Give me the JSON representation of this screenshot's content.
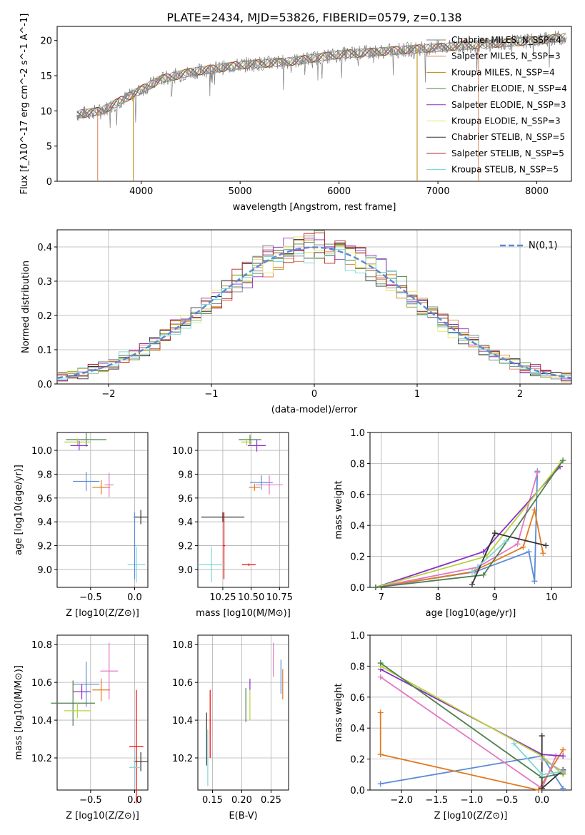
{
  "figure": {
    "title": "PLATE=2434, MJD=53826, FIBERID=0579, z=0.138"
  },
  "colors": {
    "Chabrier MILES": "#7f7f7f",
    "Salpeter MILES": "#e07b54",
    "Kroupa MILES": "#b8860b",
    "Chabrier ELODIE": "#4f7f4f",
    "Salpeter ELODIE": "#8b2fc9",
    "Kroupa ELODIE": "#e6e65a",
    "Chabrier STELIB": "#333333",
    "Salpeter STELIB": "#b22222",
    "Kroupa STELIB": "#6fd3d3",
    "normal": "#5b8bd6",
    "pink": "#e377c2",
    "orange": "#e07b20",
    "blue": "#5b8bd6",
    "purple": "#8b2fc9",
    "olive": "#b5d33d",
    "green": "#4f7f4f",
    "dark": "#333333",
    "cyan": "#7fd6d6",
    "grey": "#aaaaaa"
  },
  "chart_data": [
    {
      "type": "line",
      "id": "spectrum",
      "title": "PLATE=2434, MJD=53826, FIBERID=0579, z=0.138",
      "xlabel": "wavelength [Angstrom, rest frame]",
      "ylabel": "Flux [f_λ10^-17 erg cm^-2 s^-1 A^-1]",
      "xlim": [
        3150,
        8350
      ],
      "ylim": [
        0,
        22
      ],
      "xticks": [
        "4000",
        "5000",
        "6000",
        "7000",
        "8000"
      ],
      "yticks": [
        "0",
        "5",
        "10",
        "15",
        "20"
      ],
      "grid": false,
      "legend_position": "top-right",
      "series": [
        {
          "name": "Chabrier MILES, N_SSP=4"
        },
        {
          "name": "Salpeter MILES, N_SSP=3"
        },
        {
          "name": "Kroupa MILES, N_SSP=4"
        },
        {
          "name": "Chabrier ELODIE, N_SSP=4"
        },
        {
          "name": "Salpeter ELODIE, N_SSP=3"
        },
        {
          "name": "Kroupa ELODIE, N_SSP=3"
        },
        {
          "name": "Chabrier STELIB, N_SSP=5"
        },
        {
          "name": "Salpeter STELIB, N_SSP=5"
        },
        {
          "name": "Kroupa STELIB, N_SSP=5"
        }
      ],
      "continuum_points": [
        [
          3350,
          9.5
        ],
        [
          3600,
          10
        ],
        [
          3800,
          11.5
        ],
        [
          4000,
          13
        ],
        [
          4200,
          14.5
        ],
        [
          4500,
          15.5
        ],
        [
          5000,
          16.5
        ],
        [
          5500,
          17
        ],
        [
          6000,
          18
        ],
        [
          6500,
          18.5
        ],
        [
          7000,
          19
        ],
        [
          7500,
          19.5
        ],
        [
          8000,
          20
        ],
        [
          8300,
          20.5
        ]
      ]
    },
    {
      "type": "line",
      "id": "residuals",
      "xlabel": "(data-model)/error",
      "ylabel": "Normed distribution",
      "xlim": [
        -2.5,
        2.5
      ],
      "ylim": [
        0,
        0.45
      ],
      "xticks": [
        "−2",
        "−1",
        "0",
        "1",
        "2"
      ],
      "yticks": [
        "0.0",
        "0.1",
        "0.2",
        "0.3",
        "0.4"
      ],
      "grid": true,
      "legend_position": "top-right",
      "series": [
        {
          "name": "N(0,1)",
          "style": "dashed"
        }
      ]
    },
    {
      "type": "scatter",
      "id": "age_vs_Z",
      "xlabel": "Z [log10(Z/Z⊙)]",
      "ylabel": "age [log10(age/yr)]",
      "xlim": [
        -0.88,
        0.15
      ],
      "ylim": [
        8.85,
        10.15
      ],
      "xticks": [
        "−0.5",
        "0.0"
      ],
      "yticks": [
        "9.0",
        "9.2",
        "9.4",
        "9.6",
        "9.8",
        "10.0"
      ],
      "grid": true,
      "points": [
        {
          "color": "green",
          "x": -0.55,
          "y": 10.09,
          "xerr": 0.23,
          "yerr": 0.06
        },
        {
          "color": "olive",
          "x": -0.65,
          "y": 10.07,
          "xerr": 0.15,
          "yerr": 0.03
        },
        {
          "color": "purple",
          "x": -0.63,
          "y": 10.04,
          "xerr": 0.1,
          "yerr": 0.04
        },
        {
          "color": "blue",
          "x": -0.55,
          "y": 9.74,
          "xerr": 0.15,
          "yerr": 0.08
        },
        {
          "color": "pink",
          "x": -0.29,
          "y": 9.71,
          "xerr": 0.05,
          "yerr": 0.1
        },
        {
          "color": "orange",
          "x": -0.38,
          "y": 9.69,
          "xerr": 0.1,
          "yerr": 0.06
        },
        {
          "color": "dark",
          "x": 0.07,
          "y": 9.44,
          "xerr": 0.08,
          "yerr": 0.06
        },
        {
          "color": "cyan",
          "x": 0.02,
          "y": 9.04,
          "xerr": 0.1,
          "yerr": 0.15
        },
        {
          "color": "blue",
          "x": 0.0,
          "y": 9.2,
          "xerr": 0.01,
          "yerr": 0.28
        }
      ]
    },
    {
      "type": "scatter",
      "id": "age_vs_mass",
      "xlabel": "mass [log10(M/M⊙)]",
      "ylabel": "",
      "xlim": [
        10.03,
        10.83
      ],
      "ylim": [
        8.85,
        10.15
      ],
      "xticks": [
        "10.25",
        "10.50",
        "10.75"
      ],
      "yticks": [
        "9.0",
        "9.2",
        "9.4",
        "9.6",
        "9.8",
        "10.0"
      ],
      "grid": true,
      "points": [
        {
          "color": "green",
          "x": 10.49,
          "y": 10.09,
          "xerr": 0.1,
          "yerr": 0.04
        },
        {
          "color": "olive",
          "x": 10.46,
          "y": 10.07,
          "xerr": 0.05,
          "yerr": 0.03
        },
        {
          "color": "purple",
          "x": 10.55,
          "y": 10.04,
          "xerr": 0.08,
          "yerr": 0.05
        },
        {
          "color": "blue",
          "x": 10.59,
          "y": 9.73,
          "xerr": 0.1,
          "yerr": 0.06
        },
        {
          "color": "pink",
          "x": 10.66,
          "y": 9.71,
          "xerr": 0.12,
          "yerr": 0.08
        },
        {
          "color": "orange",
          "x": 10.53,
          "y": 9.69,
          "xerr": 0.05,
          "yerr": 0.03
        },
        {
          "color": "dark",
          "x": 10.25,
          "y": 9.44,
          "xerr": 0.19,
          "yerr": 0.04
        },
        {
          "color": "red",
          "x": 10.26,
          "y": 9.2,
          "xerr": 0.01,
          "yerr": 0.28
        },
        {
          "color": "cyan",
          "x": 10.15,
          "y": 9.04,
          "xerr": 0.12,
          "yerr": 0.15
        },
        {
          "color": "red",
          "x": 10.48,
          "y": 9.04,
          "xerr": 0.06,
          "yerr": 0.01
        }
      ]
    },
    {
      "type": "line",
      "id": "massweight_vs_age",
      "xlabel": "age [log10(age/yr)]",
      "ylabel": "mass weight",
      "xlim": [
        6.8,
        10.35
      ],
      "ylim": [
        0,
        1
      ],
      "xticks": [
        "7",
        "8",
        "9",
        "10"
      ],
      "yticks": [
        "0.0",
        "0.2",
        "0.4",
        "0.6",
        "0.8",
        "1.0"
      ],
      "grid": true,
      "series": [
        {
          "color": "blue",
          "points": [
            [
              6.9,
              0.0
            ],
            [
              8.65,
              0.1
            ],
            [
              9.6,
              0.23
            ],
            [
              9.7,
              0.04
            ],
            [
              9.75,
              0.75
            ]
          ]
        },
        {
          "color": "orange",
          "points": [
            [
              6.9,
              0.0
            ],
            [
              8.6,
              0.1
            ],
            [
              9.5,
              0.26
            ],
            [
              9.7,
              0.5
            ],
            [
              9.85,
              0.22
            ]
          ]
        },
        {
          "color": "pink",
          "points": [
            [
              6.9,
              0.0
            ],
            [
              8.7,
              0.13
            ],
            [
              9.4,
              0.28
            ],
            [
              9.75,
              0.74
            ]
          ]
        },
        {
          "color": "purple",
          "points": [
            [
              6.9,
              0.0
            ],
            [
              8.8,
              0.23
            ],
            [
              10.15,
              0.78
            ]
          ]
        },
        {
          "color": "olive",
          "points": [
            [
              6.9,
              0.0
            ],
            [
              8.85,
              0.2
            ],
            [
              10.15,
              0.8
            ]
          ]
        },
        {
          "color": "green",
          "points": [
            [
              6.9,
              0.0
            ],
            [
              8.8,
              0.08
            ],
            [
              10.2,
              0.82
            ]
          ]
        },
        {
          "color": "dark",
          "points": [
            [
              8.6,
              0.02
            ],
            [
              9.0,
              0.35
            ],
            [
              9.9,
              0.27
            ]
          ]
        },
        {
          "color": "cyan",
          "points": [
            [
              8.6,
              0.1
            ],
            [
              9.2,
              0.3
            ]
          ]
        }
      ]
    },
    {
      "type": "scatter",
      "id": "mass_vs_Z",
      "xlabel": "Z [log10(Z/Z⊙)]",
      "ylabel": "mass [log10(M/M⊙)]",
      "xlim": [
        -0.88,
        0.15
      ],
      "ylim": [
        10.03,
        10.85
      ],
      "xticks": [
        "−0.5",
        "0.0"
      ],
      "yticks": [
        "10.2",
        "10.4",
        "10.6",
        "10.8"
      ],
      "grid": true,
      "points": [
        {
          "color": "pink",
          "x": -0.29,
          "y": 10.66,
          "xerr": 0.1,
          "yerr": 0.15
        },
        {
          "color": "blue",
          "x": -0.55,
          "y": 10.59,
          "xerr": 0.15,
          "yerr": 0.12
        },
        {
          "color": "orange",
          "x": -0.38,
          "y": 10.56,
          "xerr": 0.1,
          "yerr": 0.06
        },
        {
          "color": "purple",
          "x": -0.6,
          "y": 10.55,
          "xerr": 0.1,
          "yerr": 0.04
        },
        {
          "color": "green",
          "x": -0.7,
          "y": 10.49,
          "xerr": 0.25,
          "yerr": 0.12
        },
        {
          "color": "olive",
          "x": -0.65,
          "y": 10.45,
          "xerr": 0.15,
          "yerr": 0.04
        },
        {
          "color": "red",
          "x": 0.02,
          "y": 10.26,
          "xerr": 0.08,
          "yerr": 0.3
        },
        {
          "color": "dark",
          "x": 0.07,
          "y": 10.18,
          "xerr": 0.08,
          "yerr": 0.05
        },
        {
          "color": "cyan",
          "x": 0.0,
          "y": 10.15,
          "xerr": 0.06,
          "yerr": 0.1
        }
      ]
    },
    {
      "type": "scatter",
      "id": "mass_vs_ebv",
      "xlabel": "E(B-V)",
      "ylabel": "",
      "xlim": [
        0.125,
        0.28
      ],
      "ylim": [
        10.03,
        10.85
      ],
      "xticks": [
        "0.15",
        "0.20",
        "0.25"
      ],
      "yticks": [
        "10.2",
        "10.4",
        "10.6",
        "10.8"
      ],
      "grid": true,
      "points": [
        {
          "color": "pink",
          "x": 0.254,
          "y": 10.72,
          "xerr": 0.0,
          "yerr": 0.09
        },
        {
          "color": "blue",
          "x": 0.267,
          "y": 10.63,
          "xerr": 0.0,
          "yerr": 0.09
        },
        {
          "color": "orange",
          "x": 0.27,
          "y": 10.59,
          "xerr": 0.0,
          "yerr": 0.08
        },
        {
          "color": "purple",
          "x": 0.214,
          "y": 10.59,
          "xerr": 0.0,
          "yerr": 0.03
        },
        {
          "color": "olive",
          "x": 0.214,
          "y": 10.48,
          "xerr": 0.0,
          "yerr": 0.08
        },
        {
          "color": "green",
          "x": 0.207,
          "y": 10.48,
          "xerr": 0.0,
          "yerr": 0.09
        },
        {
          "color": "red",
          "x": 0.146,
          "y": 10.38,
          "xerr": 0.0,
          "yerr": 0.18
        },
        {
          "color": "dark",
          "x": 0.14,
          "y": 10.3,
          "xerr": 0.0,
          "yerr": 0.14
        },
        {
          "color": "cyan",
          "x": 0.142,
          "y": 10.2,
          "xerr": 0.0,
          "yerr": 0.15
        }
      ]
    },
    {
      "type": "line",
      "id": "massweight_vs_Z",
      "xlabel": "Z [log10(Z/Z⊙)]",
      "ylabel": "mass weight",
      "xlim": [
        -2.45,
        0.42
      ],
      "ylim": [
        0,
        1
      ],
      "xticks": [
        "−2.0",
        "−1.5",
        "−1.0",
        "−0.5",
        "0.0"
      ],
      "yticks": [
        "0.0",
        "0.2",
        "0.4",
        "0.6",
        "0.8",
        "1.0"
      ],
      "grid": true,
      "series": [
        {
          "color": "blue",
          "points": [
            [
              -2.3,
              0.04
            ],
            [
              0.0,
              0.22
            ],
            [
              0.3,
              0.01
            ]
          ]
        },
        {
          "color": "orange",
          "points": [
            [
              -2.3,
              0.5
            ],
            [
              -2.3,
              0.23
            ],
            [
              -0.05,
              0.0
            ],
            [
              0.3,
              0.26
            ]
          ]
        },
        {
          "color": "pink",
          "points": [
            [
              -2.3,
              0.73
            ],
            [
              0.0,
              0.01
            ],
            [
              0.2,
              0.22
            ]
          ]
        },
        {
          "color": "purple",
          "points": [
            [
              -2.3,
              0.78
            ],
            [
              0.0,
              0.23
            ],
            [
              0.3,
              0.22
            ]
          ]
        },
        {
          "color": "olive",
          "points": [
            [
              -2.3,
              0.8
            ],
            [
              0.0,
              0.22
            ],
            [
              0.3,
              0.1
            ]
          ]
        },
        {
          "color": "green",
          "points": [
            [
              -2.3,
              0.82
            ],
            [
              0.0,
              0.08
            ],
            [
              0.3,
              0.11
            ]
          ]
        },
        {
          "color": "dark",
          "points": [
            [
              0.0,
              0.35
            ],
            [
              0.0,
              0.01
            ],
            [
              0.3,
              0.13
            ]
          ]
        },
        {
          "color": "cyan",
          "points": [
            [
              -0.4,
              0.3
            ],
            [
              0.0,
              0.1
            ],
            [
              0.3,
              0.12
            ]
          ]
        },
        {
          "color": "grey",
          "points": [
            [
              0.0,
              0.2
            ],
            [
              0.3,
              0.12
            ]
          ]
        }
      ]
    }
  ]
}
